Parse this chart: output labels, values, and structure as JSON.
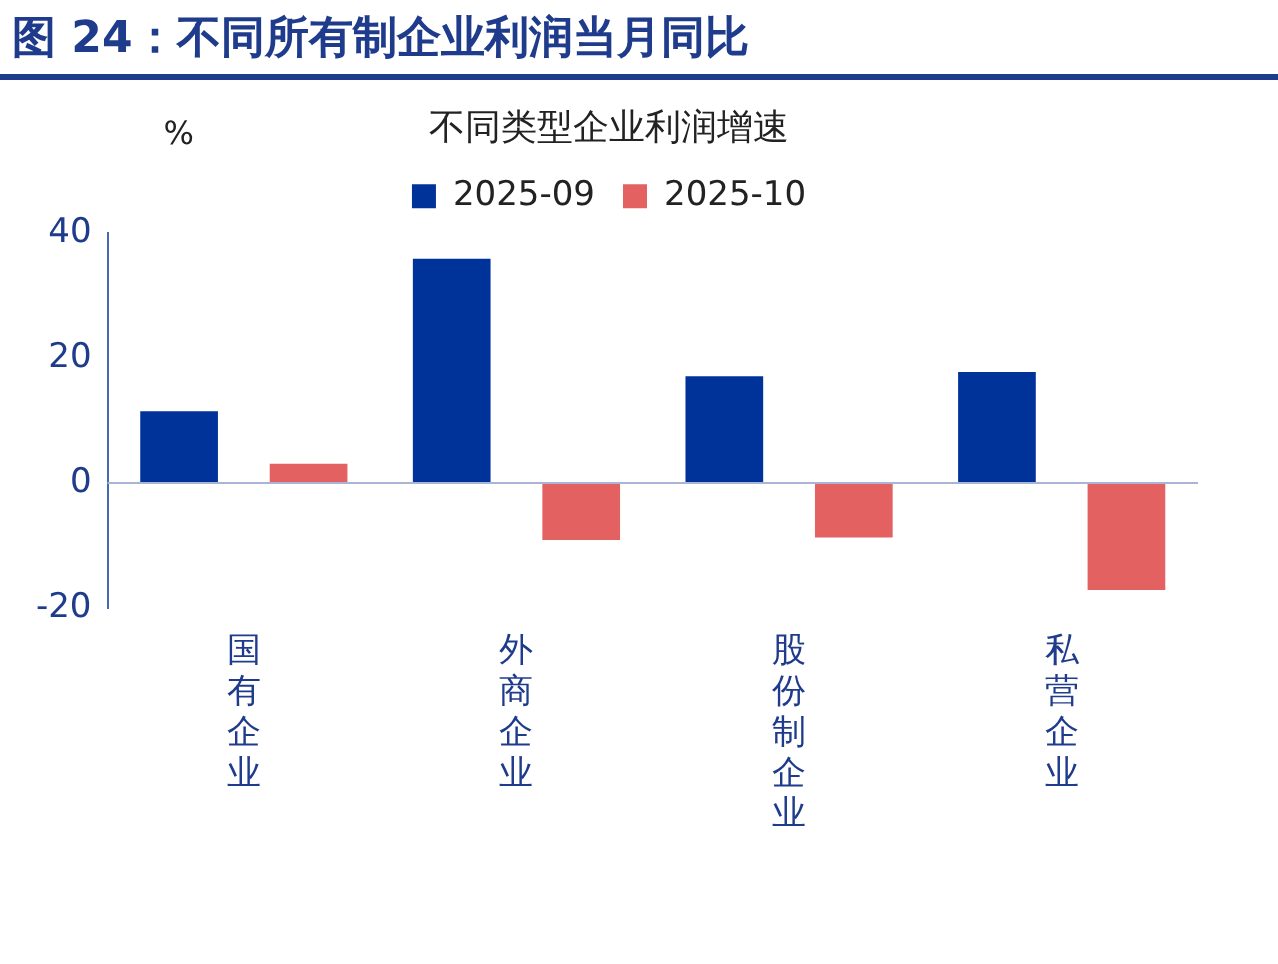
{
  "chart_data": {
    "type": "bar",
    "title": "图 24：不同所有制企业利润当月同比",
    "subtitle": "不同类型企业利润增速",
    "ylabel": "%",
    "categories": [
      "国有企业",
      "外商企业",
      "股份制企业",
      "私营企业"
    ],
    "series": [
      {
        "name": "2025-09",
        "color": "#003399",
        "values": [
          11.5,
          35.9,
          17.1,
          17.8
        ]
      },
      {
        "name": "2025-10",
        "color": "#e36161",
        "values": [
          3.1,
          -9.1,
          -8.7,
          -17.1
        ]
      }
    ],
    "ref_lines": [
      {
        "axis": "y",
        "value": 0,
        "color": "#aab4d4"
      }
    ],
    "ylim": [
      -20,
      40
    ],
    "yticks": [
      -20,
      0,
      20,
      40
    ],
    "grid": false,
    "legend": "top"
  }
}
